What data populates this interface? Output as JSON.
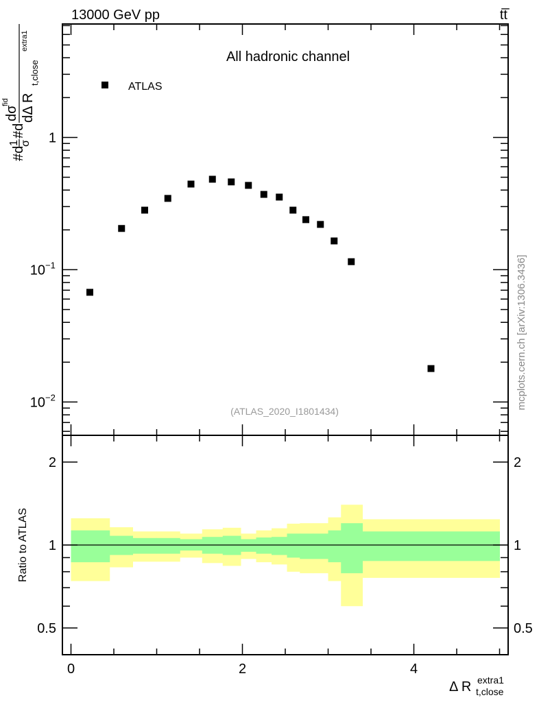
{
  "chart_data": [
    {
      "type": "scatter",
      "panel": "main",
      "title": "All hadronic channel",
      "header_left": "13000 GeV pp",
      "header_right": "tt̅",
      "ylabel_parts": {
        "lead": "#d",
        "frac1_num": "1",
        "frac1_den": "σ",
        "mid": "#d",
        "frac2_num": "dσ",
        "frac2_num_sup": "fid",
        "frac2_den": "dΔ R",
        "frac2_den_sub": "t,close",
        "frac2_den_sup": "extra1"
      },
      "yscale": "log",
      "ylim": [
        0.0056,
        7.2
      ],
      "xlim": [
        -0.1,
        5.1
      ],
      "yticks": [
        {
          "v": 1,
          "label": "1"
        },
        {
          "v": 0.1,
          "label": "10",
          "exp": "−1"
        },
        {
          "v": 0.01,
          "label": "10",
          "exp": "−2"
        }
      ],
      "legend": {
        "position": "top-left",
        "entries": [
          {
            "name": "ATLAS",
            "marker": "square",
            "color": "#000000"
          }
        ]
      },
      "analysis_tag": "(ATLAS_2020_I1801434)",
      "watermark": "mcplots.cern.ch [arXiv:1306.3436]",
      "series": [
        {
          "name": "ATLAS",
          "x": [
            0.22,
            0.59,
            0.86,
            1.13,
            1.4,
            1.65,
            1.87,
            2.07,
            2.25,
            2.43,
            2.59,
            2.74,
            2.91,
            3.07,
            3.27,
            4.2
          ],
          "y": [
            0.0675,
            0.205,
            0.282,
            0.346,
            0.444,
            0.483,
            0.461,
            0.434,
            0.371,
            0.354,
            0.282,
            0.239,
            0.22,
            0.165,
            0.115,
            0.0179
          ]
        }
      ]
    },
    {
      "type": "area",
      "panel": "ratio",
      "ylabel": "Ratio to ATLAS",
      "xlabel_parts": {
        "main": "Δ R",
        "sub": "t,close",
        "sup": "extra1"
      },
      "yscale": "log",
      "ylim": [
        0.4,
        2.5
      ],
      "xlim": [
        -0.1,
        5.1
      ],
      "xticks": [
        {
          "v": 0,
          "label": "0"
        },
        {
          "v": 2,
          "label": "2"
        },
        {
          "v": 4,
          "label": "4"
        }
      ],
      "yticks": [
        {
          "v": 0.5,
          "label": "0.5"
        },
        {
          "v": 1,
          "label": "1"
        },
        {
          "v": 2,
          "label": "2"
        }
      ],
      "reference_line": 1,
      "bin_edges": [
        0,
        0.45,
        0.72,
        1.0,
        1.27,
        1.53,
        1.77,
        1.98,
        2.16,
        2.34,
        2.52,
        2.67,
        2.82,
        3.0,
        3.15,
        3.4,
        5.0
      ],
      "bands": [
        {
          "name": "total uncertainty",
          "color": "#ffff99",
          "upper": [
            1.25,
            1.16,
            1.12,
            1.12,
            1.1,
            1.14,
            1.155,
            1.1,
            1.13,
            1.15,
            1.195,
            1.2,
            1.2,
            1.26,
            1.4,
            1.24
          ],
          "lower": [
            0.74,
            0.83,
            0.87,
            0.87,
            0.9,
            0.86,
            0.84,
            0.89,
            0.866,
            0.85,
            0.8,
            0.79,
            0.79,
            0.74,
            0.6,
            0.76
          ]
        },
        {
          "name": "stat uncertainty",
          "color": "#99ff99",
          "upper": [
            1.13,
            1.08,
            1.06,
            1.06,
            1.05,
            1.07,
            1.08,
            1.05,
            1.065,
            1.07,
            1.1,
            1.1,
            1.1,
            1.13,
            1.2,
            1.12
          ],
          "lower": [
            0.866,
            0.92,
            0.93,
            0.93,
            0.955,
            0.93,
            0.92,
            0.945,
            0.93,
            0.92,
            0.9,
            0.89,
            0.89,
            0.866,
            0.79,
            0.875
          ]
        }
      ]
    }
  ]
}
